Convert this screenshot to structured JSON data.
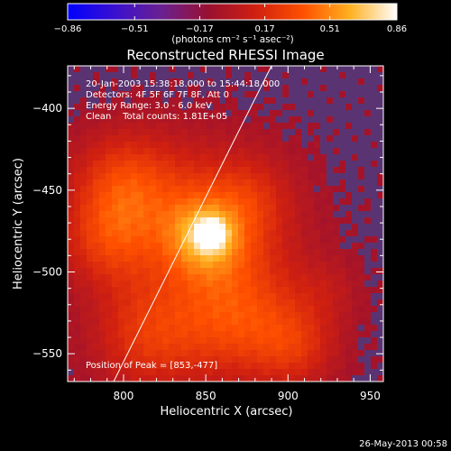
{
  "chart_data": {
    "type": "heatmap",
    "title": "Reconstructed RHESSI Image",
    "xlabel": "Heliocentric X (arcsec)",
    "ylabel": "Heliocentric Y (arcsec)",
    "xlim": [
      766,
      958
    ],
    "ylim": [
      -567,
      -374
    ],
    "x_ticks": [
      800,
      850,
      900,
      950
    ],
    "y_ticks": [
      -400,
      -450,
      -500,
      -550
    ],
    "x_tick_labels": [
      "800",
      "850",
      "900",
      "950"
    ],
    "y_tick_labels": [
      "−400",
      "−450",
      "−500",
      "−550"
    ],
    "colorbar": {
      "min": -0.86,
      "max": 0.86,
      "ticks": [
        -0.86,
        -0.51,
        -0.17,
        0.17,
        0.51,
        0.86
      ],
      "tick_labels": [
        "−0.86",
        "−0.51",
        "−0.17",
        "0.17",
        "0.51",
        "0.86"
      ],
      "units": "(photons cm⁻² s⁻¹ asec⁻²)",
      "colormap": [
        "#0000ff",
        "#3a10d0",
        "#6a2090",
        "#9a1030",
        "#d02010",
        "#ff5000",
        "#ffb020",
        "#ffffff"
      ]
    },
    "peak": {
      "x": 853,
      "y": -477,
      "value": 0.86
    },
    "background_level": -0.1,
    "background_color": "#5a3472",
    "emission_sources": [
      {
        "x": 853,
        "y": -477,
        "sigma": 6,
        "amplitude": 0.62
      },
      {
        "x": 850,
        "y": -478,
        "sigma": 16,
        "amplitude": 0.42
      },
      {
        "x": 852,
        "y": -470,
        "sigma": 38,
        "amplitude": 0.38
      },
      {
        "x": 800,
        "y": -445,
        "sigma": 22,
        "amplitude": 0.32
      },
      {
        "x": 790,
        "y": -480,
        "sigma": 20,
        "amplitude": 0.28
      },
      {
        "x": 815,
        "y": -540,
        "sigma": 24,
        "amplitude": 0.3
      },
      {
        "x": 870,
        "y": -530,
        "sigma": 26,
        "amplitude": 0.34
      },
      {
        "x": 905,
        "y": -545,
        "sigma": 18,
        "amplitude": 0.25
      },
      {
        "x": 880,
        "y": -450,
        "sigma": 18,
        "amplitude": 0.22
      },
      {
        "x": 925,
        "y": -510,
        "sigma": 14,
        "amplitude": 0.12
      }
    ],
    "limb_line": [
      [
        794,
        -567
      ],
      [
        862,
        -430
      ],
      [
        890,
        -374
      ]
    ],
    "annotations": [
      "20-Jan-2003 15:38:18.000 to 15:44:18.000",
      "Detectors: 4F 5F 6F 7F 8F, Att 0",
      "Energy Range: 3.0 - 6.0 keV",
      "Clean    Total counts: 1.81E+05"
    ],
    "peak_label": "Position of Peak = [853,-477]",
    "footer_date": "26-May-2013 00:58"
  }
}
